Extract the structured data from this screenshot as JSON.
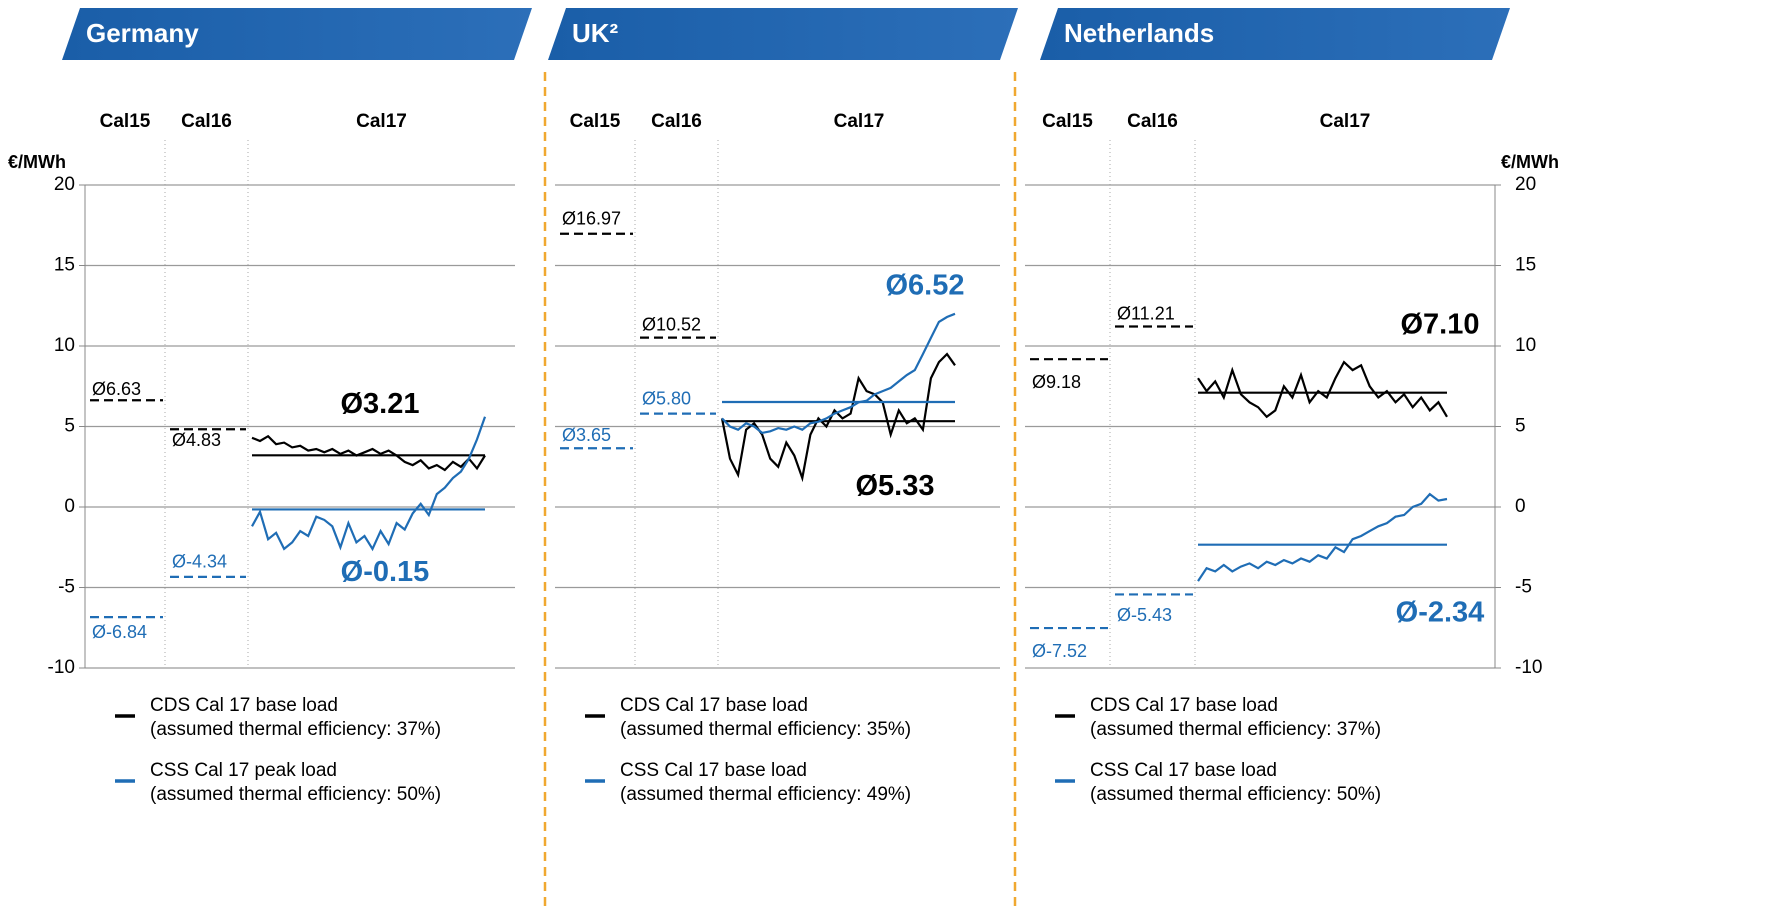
{
  "chart_data": [
    {
      "type": "line",
      "title": "Germany",
      "periods": [
        "Cal15",
        "Cal16",
        "Cal17"
      ],
      "y_label": "€/MWh",
      "axis_side": "left",
      "ylim": [
        -10,
        20
      ],
      "yticks": [
        -10,
        -5,
        0,
        5,
        10,
        15,
        20
      ],
      "grid": true,
      "series": [
        {
          "name": "CDS Cal 17 base load",
          "efficiency": "(assumed thermal efficiency: 37%)",
          "color": "#000000",
          "averages": [
            6.63,
            4.83,
            3.21
          ],
          "average_labels": [
            "Ø6.63",
            "Ø4.83",
            "Ø3.21"
          ],
          "values": [
            4.3,
            4.1,
            4.4,
            3.9,
            4.0,
            3.7,
            3.8,
            3.5,
            3.6,
            3.4,
            3.6,
            3.3,
            3.5,
            3.2,
            3.4,
            3.6,
            3.3,
            3.5,
            3.2,
            2.8,
            2.6,
            2.9,
            2.4,
            2.6,
            2.3,
            2.8,
            2.5,
            3.0,
            2.4,
            3.2
          ]
        },
        {
          "name": "CSS Cal 17 peak load",
          "efficiency": "(assumed thermal efficiency: 50%)",
          "color": "#1f6db5",
          "averages": [
            -6.84,
            -4.34,
            -0.15
          ],
          "average_labels": [
            "Ø-6.84",
            "Ø-4.34",
            "Ø-0.15"
          ],
          "values": [
            -1.2,
            -0.3,
            -2.0,
            -1.6,
            -2.6,
            -2.2,
            -1.5,
            -1.8,
            -0.6,
            -0.8,
            -1.2,
            -2.5,
            -1.0,
            -2.2,
            -1.8,
            -2.6,
            -1.5,
            -2.3,
            -1.0,
            -1.4,
            -0.4,
            0.2,
            -0.5,
            0.8,
            1.2,
            1.8,
            2.2,
            3.0,
            4.2,
            5.6
          ]
        }
      ]
    },
    {
      "type": "line",
      "title": "UK²",
      "periods": [
        "Cal15",
        "Cal16",
        "Cal17"
      ],
      "axis_side": "none",
      "ylim": [
        -10,
        20
      ],
      "yticks": [
        -10,
        -5,
        0,
        5,
        10,
        15,
        20
      ],
      "grid": true,
      "series": [
        {
          "name": "CDS Cal 17 base load",
          "efficiency": "(assumed thermal efficiency: 35%)",
          "color": "#000000",
          "averages": [
            16.97,
            10.52,
            5.33
          ],
          "average_labels": [
            "Ø16.97",
            "Ø10.52",
            "Ø5.33"
          ],
          "values": [
            5.5,
            3.0,
            2.0,
            4.8,
            5.2,
            4.5,
            3.0,
            2.5,
            4.0,
            3.2,
            1.8,
            4.5,
            5.5,
            5.0,
            6.0,
            5.5,
            5.8,
            8.0,
            7.2,
            7.0,
            6.5,
            4.5,
            6.0,
            5.2,
            5.5,
            4.8,
            8.0,
            9.0,
            9.5,
            8.8
          ]
        },
        {
          "name": "CSS Cal 17 base load",
          "efficiency": "(assumed thermal efficiency: 49%)",
          "color": "#1f6db5",
          "averages": [
            3.65,
            5.8,
            6.52
          ],
          "average_labels": [
            "Ø3.65",
            "Ø5.80",
            "Ø6.52"
          ],
          "values": [
            5.5,
            5.0,
            4.8,
            5.2,
            5.0,
            4.6,
            4.7,
            4.9,
            4.8,
            5.0,
            4.8,
            5.2,
            5.3,
            5.5,
            5.8,
            6.0,
            6.2,
            6.5,
            6.6,
            7.0,
            7.2,
            7.4,
            7.8,
            8.2,
            8.5,
            9.5,
            10.5,
            11.5,
            11.8,
            12.0
          ]
        }
      ]
    },
    {
      "type": "line",
      "title": "Netherlands",
      "periods": [
        "Cal15",
        "Cal16",
        "Cal17"
      ],
      "y_label": "€/MWh",
      "axis_side": "right",
      "ylim": [
        -10,
        20
      ],
      "yticks": [
        -10,
        -5,
        0,
        5,
        10,
        15,
        20
      ],
      "grid": true,
      "series": [
        {
          "name": "CDS Cal 17 base load",
          "efficiency": "(assumed thermal efficiency: 37%)",
          "color": "#000000",
          "averages": [
            9.18,
            11.21,
            7.1
          ],
          "average_labels": [
            "Ø9.18",
            "Ø11.21",
            "Ø7.10"
          ],
          "values": [
            8.0,
            7.2,
            7.8,
            6.8,
            8.5,
            7.0,
            6.5,
            6.2,
            5.6,
            6.0,
            7.5,
            6.8,
            8.2,
            6.5,
            7.2,
            6.8,
            8.0,
            9.0,
            8.5,
            8.8,
            7.5,
            6.8,
            7.2,
            6.5,
            7.0,
            6.2,
            6.8,
            6.0,
            6.5,
            5.6
          ]
        },
        {
          "name": "CSS Cal 17 base load",
          "efficiency": "(assumed thermal efficiency: 50%)",
          "color": "#1f6db5",
          "averages": [
            -7.52,
            -5.43,
            -2.34
          ],
          "average_labels": [
            "Ø-7.52",
            "Ø-5.43",
            "Ø-2.34"
          ],
          "values": [
            -4.6,
            -3.8,
            -4.0,
            -3.6,
            -4.0,
            -3.7,
            -3.5,
            -3.8,
            -3.4,
            -3.6,
            -3.3,
            -3.5,
            -3.2,
            -3.4,
            -3.0,
            -3.2,
            -2.5,
            -2.8,
            -2.0,
            -1.8,
            -1.5,
            -1.2,
            -1.0,
            -0.6,
            -0.5,
            0.0,
            0.2,
            0.8,
            0.4,
            0.5
          ]
        }
      ]
    }
  ]
}
